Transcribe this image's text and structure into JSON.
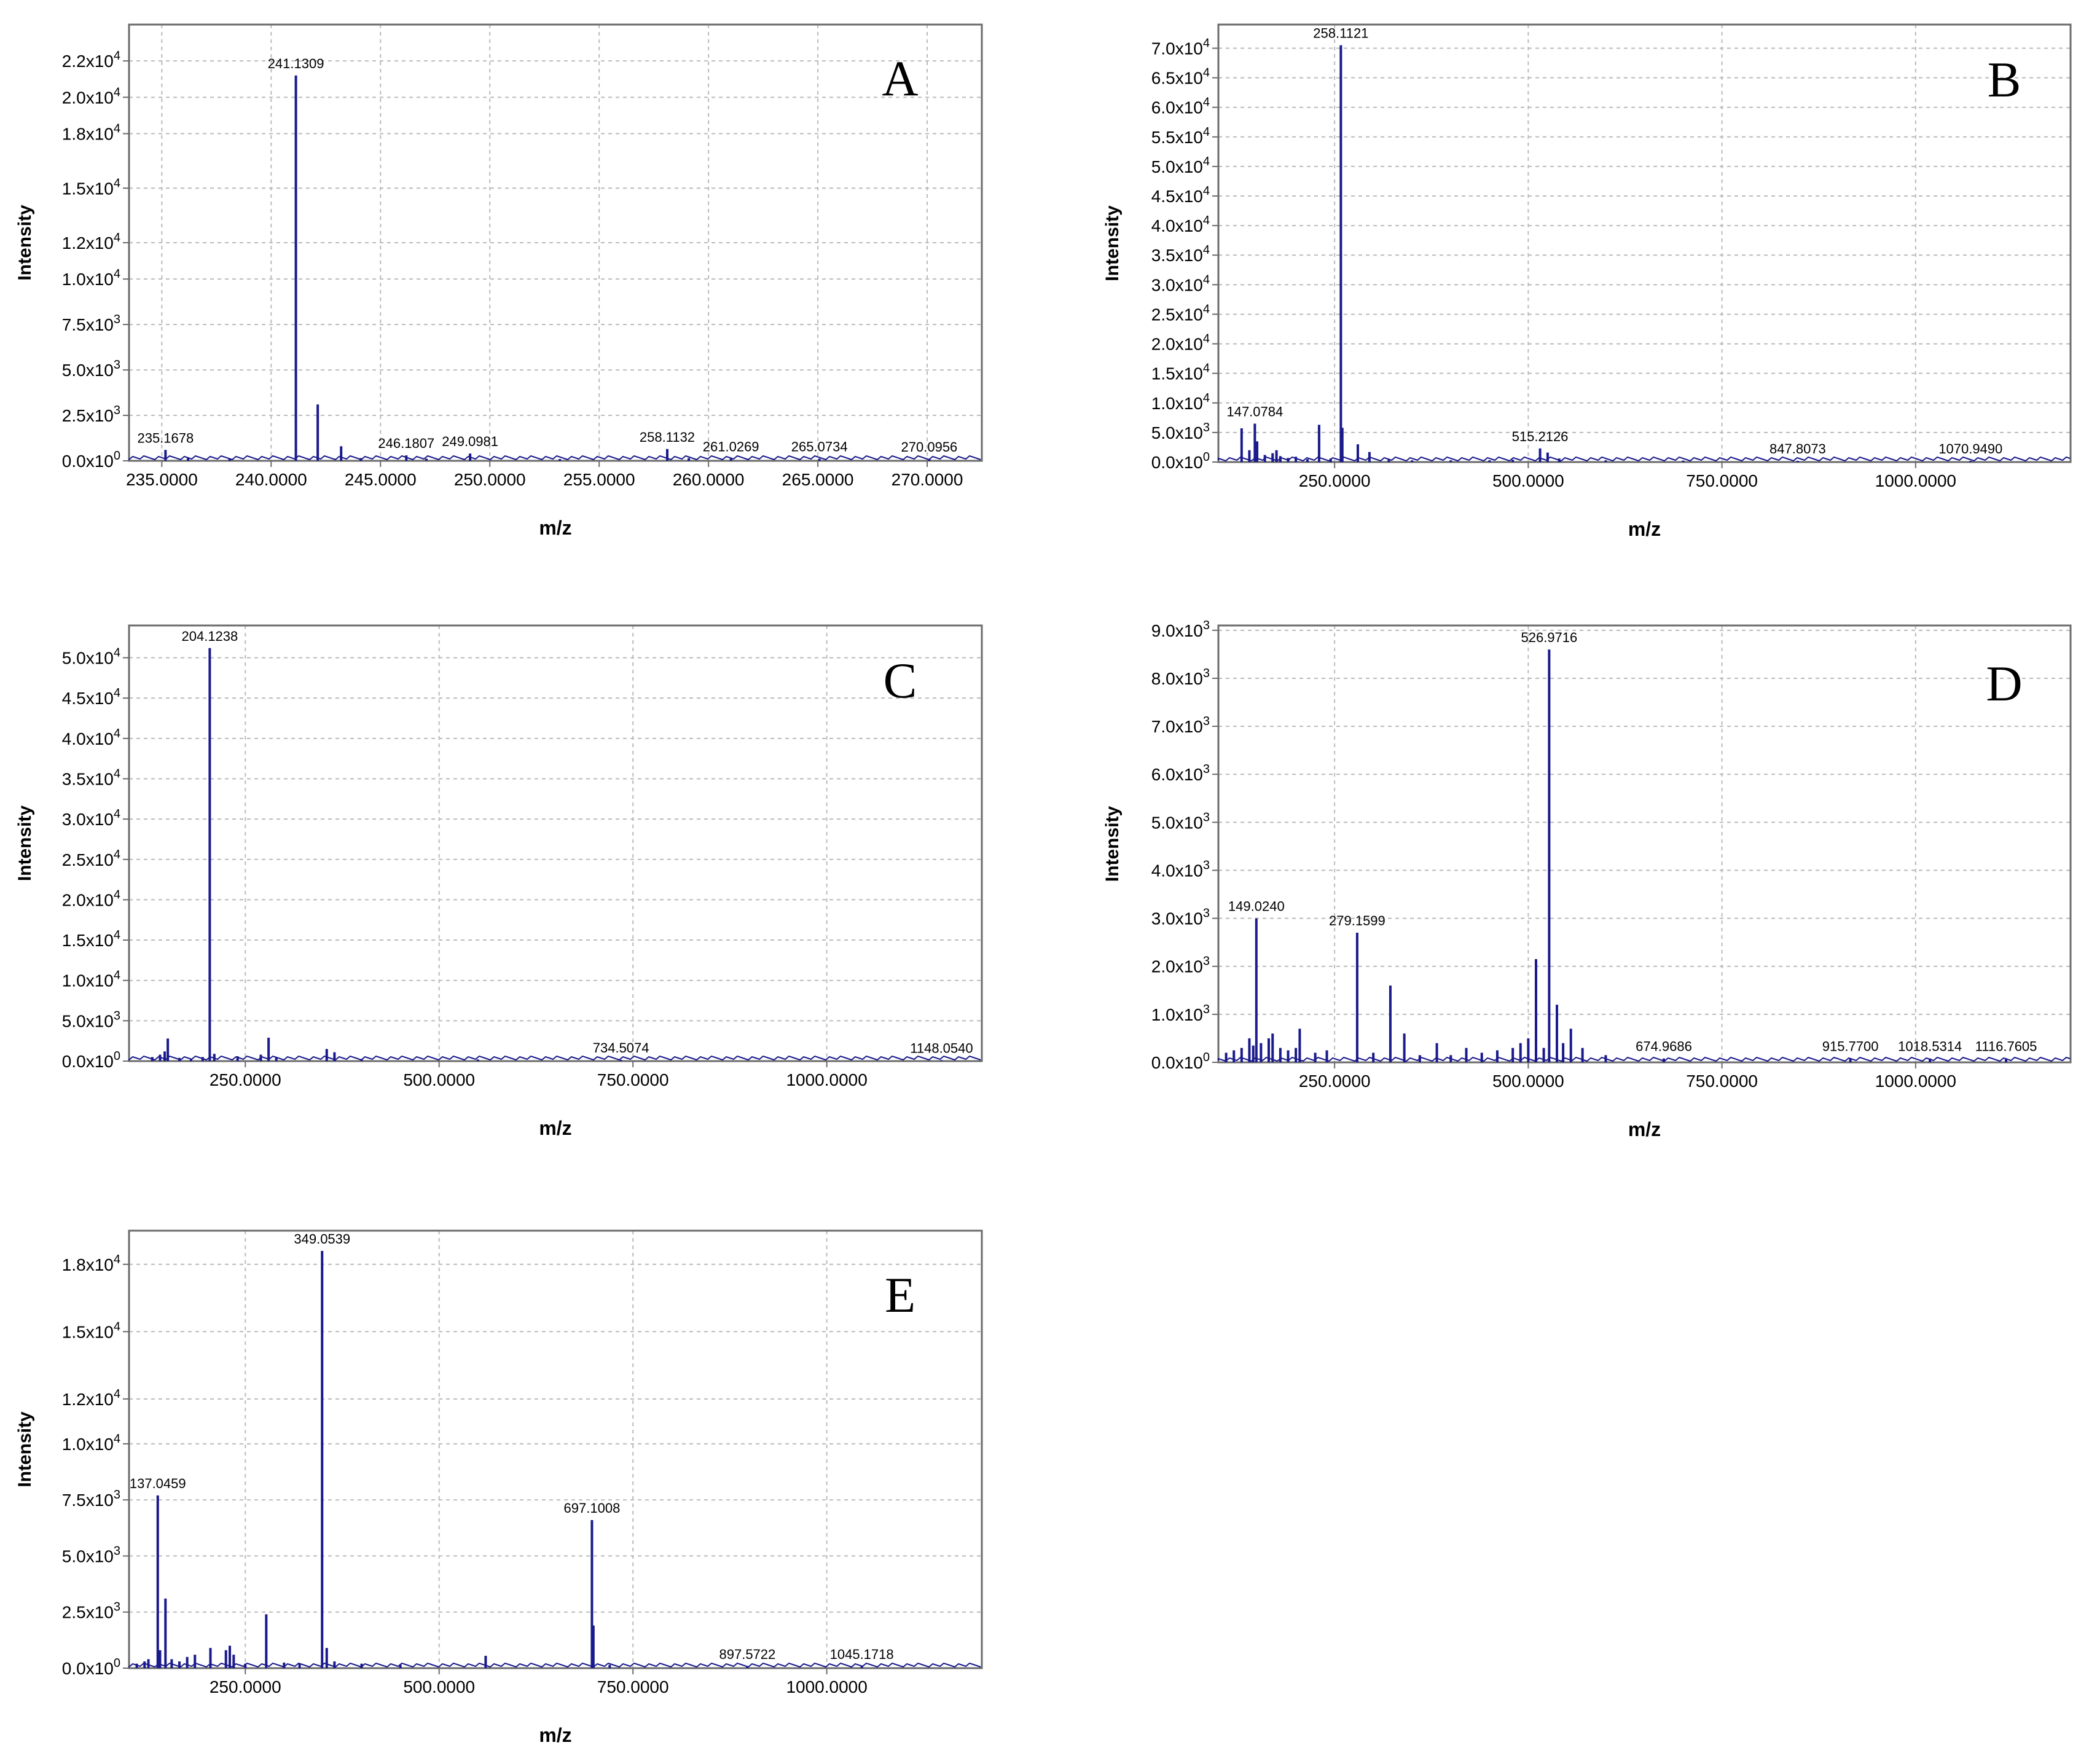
{
  "figure": {
    "background": "#ffffff"
  },
  "style": {
    "trace_color": "#1a1a8c",
    "grid_color": "#bbbbbb",
    "frame_color": "#6b6b6b",
    "text_color": "#000000"
  },
  "chart_data": [
    {
      "panel": "A",
      "type": "bar",
      "xlabel": "m/z",
      "ylabel": "Intensity",
      "xlim": [
        233.5,
        272.5
      ],
      "ylim": [
        0,
        24000
      ],
      "xticks": [
        235,
        240,
        245,
        250,
        255,
        260,
        265,
        270
      ],
      "xtick_labels": [
        "235.0000",
        "240.0000",
        "245.0000",
        "250.0000",
        "255.0000",
        "260.0000",
        "265.0000",
        "270.0000"
      ],
      "yticks": [
        {
          "value": 0,
          "mantissa": "0.0",
          "exp": "0"
        },
        {
          "value": 2500,
          "mantissa": "2.5",
          "exp": "3"
        },
        {
          "value": 5000,
          "mantissa": "5.0",
          "exp": "3"
        },
        {
          "value": 7500,
          "mantissa": "7.5",
          "exp": "3"
        },
        {
          "value": 10000,
          "mantissa": "1.0",
          "exp": "4"
        },
        {
          "value": 12000,
          "mantissa": "1.2",
          "exp": "4"
        },
        {
          "value": 15000,
          "mantissa": "1.5",
          "exp": "4"
        },
        {
          "value": 18000,
          "mantissa": "1.8",
          "exp": "4"
        },
        {
          "value": 20000,
          "mantissa": "2.0",
          "exp": "4"
        },
        {
          "value": 22000,
          "mantissa": "2.2",
          "exp": "4"
        }
      ],
      "peaks": [
        {
          "x": 235.1678,
          "y": 600
        },
        {
          "x": 236.2,
          "y": 150
        },
        {
          "x": 238.1,
          "y": 100
        },
        {
          "x": 241.1309,
          "y": 21200
        },
        {
          "x": 242.13,
          "y": 3100
        },
        {
          "x": 243.2,
          "y": 800
        },
        {
          "x": 244.1,
          "y": 150
        },
        {
          "x": 246.1807,
          "y": 300
        },
        {
          "x": 247.1,
          "y": 120
        },
        {
          "x": 249.0981,
          "y": 400
        },
        {
          "x": 253.2,
          "y": 100
        },
        {
          "x": 258.1132,
          "y": 650
        },
        {
          "x": 259.1,
          "y": 150
        },
        {
          "x": 261.0269,
          "y": 120
        },
        {
          "x": 265.0734,
          "y": 120
        },
        {
          "x": 270.0956,
          "y": 100
        }
      ],
      "labels": [
        {
          "text": "235.1678",
          "x": 235.1678,
          "y": 600
        },
        {
          "text": "241.1309",
          "x": 241.1309,
          "y": 21200
        },
        {
          "text": "246.1807",
          "x": 246.1807,
          "y": 300
        },
        {
          "text": "249.0981",
          "x": 249.0981,
          "y": 400
        },
        {
          "text": "258.1132",
          "x": 258.1132,
          "y": 650
        },
        {
          "text": "261.0269",
          "x": 261.0269,
          "y": 120
        },
        {
          "text": "265.0734",
          "x": 265.0734,
          "y": 120
        },
        {
          "text": "270.0956",
          "x": 270.0956,
          "y": 100
        }
      ]
    },
    {
      "panel": "B",
      "type": "bar",
      "xlabel": "m/z",
      "ylabel": "Intensity",
      "xlim": [
        100,
        1200
      ],
      "ylim": [
        0,
        74000
      ],
      "xticks": [
        250,
        500,
        750,
        1000
      ],
      "xtick_labels": [
        "250.0000",
        "500.0000",
        "750.0000",
        "1000.0000"
      ],
      "yticks": [
        {
          "value": 0,
          "mantissa": "0.0",
          "exp": "0"
        },
        {
          "value": 5000,
          "mantissa": "5.0",
          "exp": "3"
        },
        {
          "value": 10000,
          "mantissa": "1.0",
          "exp": "4"
        },
        {
          "value": 15000,
          "mantissa": "1.5",
          "exp": "4"
        },
        {
          "value": 20000,
          "mantissa": "2.0",
          "exp": "4"
        },
        {
          "value": 25000,
          "mantissa": "2.5",
          "exp": "4"
        },
        {
          "value": 30000,
          "mantissa": "3.0",
          "exp": "4"
        },
        {
          "value": 35000,
          "mantissa": "3.5",
          "exp": "4"
        },
        {
          "value": 40000,
          "mantissa": "4.0",
          "exp": "4"
        },
        {
          "value": 45000,
          "mantissa": "4.5",
          "exp": "4"
        },
        {
          "value": 50000,
          "mantissa": "5.0",
          "exp": "4"
        },
        {
          "value": 55000,
          "mantissa": "5.5",
          "exp": "4"
        },
        {
          "value": 60000,
          "mantissa": "6.0",
          "exp": "4"
        },
        {
          "value": 65000,
          "mantissa": "6.5",
          "exp": "4"
        },
        {
          "value": 70000,
          "mantissa": "7.0",
          "exp": "4"
        }
      ],
      "peaks": [
        {
          "x": 130,
          "y": 5700
        },
        {
          "x": 140,
          "y": 2000
        },
        {
          "x": 147.0784,
          "y": 6500
        },
        {
          "x": 150,
          "y": 3500
        },
        {
          "x": 160,
          "y": 1200
        },
        {
          "x": 170,
          "y": 1500
        },
        {
          "x": 175,
          "y": 2000
        },
        {
          "x": 180,
          "y": 1000
        },
        {
          "x": 190,
          "y": 700
        },
        {
          "x": 200,
          "y": 900
        },
        {
          "x": 215,
          "y": 500
        },
        {
          "x": 230,
          "y": 6300
        },
        {
          "x": 245,
          "y": 600
        },
        {
          "x": 258.1121,
          "y": 70500
        },
        {
          "x": 260,
          "y": 5800
        },
        {
          "x": 280,
          "y": 3000
        },
        {
          "x": 295,
          "y": 1700
        },
        {
          "x": 320,
          "y": 400
        },
        {
          "x": 350,
          "y": 300
        },
        {
          "x": 400,
          "y": 300
        },
        {
          "x": 450,
          "y": 300
        },
        {
          "x": 480,
          "y": 400
        },
        {
          "x": 515.2126,
          "y": 2300
        },
        {
          "x": 525,
          "y": 1600
        },
        {
          "x": 540,
          "y": 600
        },
        {
          "x": 600,
          "y": 300
        },
        {
          "x": 700,
          "y": 250
        },
        {
          "x": 847.8073,
          "y": 200
        },
        {
          "x": 1070.949,
          "y": 200
        }
      ],
      "labels": [
        {
          "text": "258.1121",
          "x": 258.1121,
          "y": 70500
        },
        {
          "text": "147.0784",
          "x": 147.0784,
          "y": 6500
        },
        {
          "text": "515.2126",
          "x": 515.2126,
          "y": 2300
        },
        {
          "text": "847.8073",
          "x": 847.8073,
          "y": 200
        },
        {
          "text": "1070.9490",
          "x": 1070.949,
          "y": 200
        }
      ]
    },
    {
      "panel": "C",
      "type": "bar",
      "xlabel": "m/z",
      "ylabel": "Intensity",
      "xlim": [
        100,
        1200
      ],
      "ylim": [
        0,
        54000
      ],
      "xticks": [
        250,
        500,
        750,
        1000
      ],
      "xtick_labels": [
        "250.0000",
        "500.0000",
        "750.0000",
        "1000.0000"
      ],
      "yticks": [
        {
          "value": 0,
          "mantissa": "0.0",
          "exp": "0"
        },
        {
          "value": 5000,
          "mantissa": "5.0",
          "exp": "3"
        },
        {
          "value": 10000,
          "mantissa": "1.0",
          "exp": "4"
        },
        {
          "value": 15000,
          "mantissa": "1.5",
          "exp": "4"
        },
        {
          "value": 20000,
          "mantissa": "2.0",
          "exp": "4"
        },
        {
          "value": 25000,
          "mantissa": "2.5",
          "exp": "4"
        },
        {
          "value": 30000,
          "mantissa": "3.0",
          "exp": "4"
        },
        {
          "value": 35000,
          "mantissa": "3.5",
          "exp": "4"
        },
        {
          "value": 40000,
          "mantissa": "4.0",
          "exp": "4"
        },
        {
          "value": 45000,
          "mantissa": "4.5",
          "exp": "4"
        },
        {
          "value": 50000,
          "mantissa": "5.0",
          "exp": "4"
        }
      ],
      "peaks": [
        {
          "x": 130,
          "y": 500
        },
        {
          "x": 140,
          "y": 800
        },
        {
          "x": 146,
          "y": 1200
        },
        {
          "x": 150,
          "y": 2800
        },
        {
          "x": 165,
          "y": 400
        },
        {
          "x": 180,
          "y": 300
        },
        {
          "x": 195,
          "y": 500
        },
        {
          "x": 204.1238,
          "y": 51200
        },
        {
          "x": 210,
          "y": 900
        },
        {
          "x": 240,
          "y": 600
        },
        {
          "x": 270,
          "y": 800
        },
        {
          "x": 280,
          "y": 2900
        },
        {
          "x": 290,
          "y": 500
        },
        {
          "x": 355,
          "y": 1500
        },
        {
          "x": 365,
          "y": 1100
        },
        {
          "x": 400,
          "y": 200
        },
        {
          "x": 550,
          "y": 200
        },
        {
          "x": 734.5074,
          "y": 150
        },
        {
          "x": 1148.054,
          "y": 120
        }
      ],
      "labels": [
        {
          "text": "204.1238",
          "x": 204.1238,
          "y": 51200
        },
        {
          "text": "734.5074",
          "x": 734.5074,
          "y": 150
        },
        {
          "text": "1148.0540",
          "x": 1148.054,
          "y": 120
        }
      ]
    },
    {
      "panel": "D",
      "type": "bar",
      "xlabel": "m/z",
      "ylabel": "Intensity",
      "xlim": [
        100,
        1200
      ],
      "ylim": [
        0,
        9100
      ],
      "xticks": [
        250,
        500,
        750,
        1000
      ],
      "xtick_labels": [
        "250.0000",
        "500.0000",
        "750.0000",
        "1000.0000"
      ],
      "yticks": [
        {
          "value": 0,
          "mantissa": "0.0",
          "exp": "0"
        },
        {
          "value": 1000,
          "mantissa": "1.0",
          "exp": "3"
        },
        {
          "value": 2000,
          "mantissa": "2.0",
          "exp": "3"
        },
        {
          "value": 3000,
          "mantissa": "3.0",
          "exp": "3"
        },
        {
          "value": 4000,
          "mantissa": "4.0",
          "exp": "3"
        },
        {
          "value": 5000,
          "mantissa": "5.0",
          "exp": "3"
        },
        {
          "value": 6000,
          "mantissa": "6.0",
          "exp": "3"
        },
        {
          "value": 7000,
          "mantissa": "7.0",
          "exp": "3"
        },
        {
          "value": 8000,
          "mantissa": "8.0",
          "exp": "3"
        },
        {
          "value": 9000,
          "mantissa": "9.0",
          "exp": "3"
        }
      ],
      "peaks": [
        {
          "x": 110,
          "y": 200
        },
        {
          "x": 120,
          "y": 250
        },
        {
          "x": 130,
          "y": 300
        },
        {
          "x": 140,
          "y": 500
        },
        {
          "x": 145,
          "y": 350
        },
        {
          "x": 149.024,
          "y": 3000
        },
        {
          "x": 155,
          "y": 400
        },
        {
          "x": 165,
          "y": 500
        },
        {
          "x": 170,
          "y": 600
        },
        {
          "x": 180,
          "y": 300
        },
        {
          "x": 190,
          "y": 250
        },
        {
          "x": 200,
          "y": 300
        },
        {
          "x": 205,
          "y": 700
        },
        {
          "x": 225,
          "y": 200
        },
        {
          "x": 240,
          "y": 250
        },
        {
          "x": 279.1599,
          "y": 2700
        },
        {
          "x": 300,
          "y": 200
        },
        {
          "x": 322,
          "y": 1600
        },
        {
          "x": 340,
          "y": 600
        },
        {
          "x": 360,
          "y": 150
        },
        {
          "x": 382,
          "y": 400
        },
        {
          "x": 400,
          "y": 150
        },
        {
          "x": 420,
          "y": 300
        },
        {
          "x": 440,
          "y": 200
        },
        {
          "x": 460,
          "y": 250
        },
        {
          "x": 480,
          "y": 300
        },
        {
          "x": 490,
          "y": 400
        },
        {
          "x": 500,
          "y": 500
        },
        {
          "x": 510,
          "y": 2150
        },
        {
          "x": 520,
          "y": 300
        },
        {
          "x": 526.9716,
          "y": 8600
        },
        {
          "x": 537,
          "y": 1200
        },
        {
          "x": 545,
          "y": 400
        },
        {
          "x": 555,
          "y": 700
        },
        {
          "x": 570,
          "y": 300
        },
        {
          "x": 600,
          "y": 150
        },
        {
          "x": 674.9686,
          "y": 80
        },
        {
          "x": 915.77,
          "y": 80
        },
        {
          "x": 1018.5314,
          "y": 80
        },
        {
          "x": 1116.7605,
          "y": 80
        }
      ],
      "labels": [
        {
          "text": "526.9716",
          "x": 526.9716,
          "y": 8600
        },
        {
          "text": "149.0240",
          "x": 149.024,
          "y": 3000
        },
        {
          "text": "279.1599",
          "x": 279.1599,
          "y": 2700
        },
        {
          "text": "674.9686",
          "x": 674.9686,
          "y": 80
        },
        {
          "text": "915.7700",
          "x": 915.77,
          "y": 80
        },
        {
          "text": "1018.5314",
          "x": 1018.5314,
          "y": 80
        },
        {
          "text": "1116.7605",
          "x": 1116.7605,
          "y": 80
        }
      ]
    },
    {
      "panel": "E",
      "type": "bar",
      "xlabel": "m/z",
      "ylabel": "Intensity",
      "xlim": [
        100,
        1200
      ],
      "ylim": [
        0,
        19500
      ],
      "xticks": [
        250,
        500,
        750,
        1000
      ],
      "xtick_labels": [
        "250.0000",
        "500.0000",
        "750.0000",
        "1000.0000"
      ],
      "yticks": [
        {
          "value": 0,
          "mantissa": "0.0",
          "exp": "0"
        },
        {
          "value": 2500,
          "mantissa": "2.5",
          "exp": "3"
        },
        {
          "value": 5000,
          "mantissa": "5.0",
          "exp": "3"
        },
        {
          "value": 7500,
          "mantissa": "7.5",
          "exp": "3"
        },
        {
          "value": 10000,
          "mantissa": "1.0",
          "exp": "4"
        },
        {
          "value": 12000,
          "mantissa": "1.2",
          "exp": "4"
        },
        {
          "value": 15000,
          "mantissa": "1.5",
          "exp": "4"
        },
        {
          "value": 18000,
          "mantissa": "1.8",
          "exp": "4"
        }
      ],
      "peaks": [
        {
          "x": 110,
          "y": 200
        },
        {
          "x": 120,
          "y": 300
        },
        {
          "x": 125,
          "y": 400
        },
        {
          "x": 137.0459,
          "y": 7700
        },
        {
          "x": 140,
          "y": 800
        },
        {
          "x": 147,
          "y": 3100
        },
        {
          "x": 155,
          "y": 400
        },
        {
          "x": 165,
          "y": 300
        },
        {
          "x": 175,
          "y": 500
        },
        {
          "x": 185,
          "y": 600
        },
        {
          "x": 205,
          "y": 900
        },
        {
          "x": 225,
          "y": 800
        },
        {
          "x": 230,
          "y": 1000
        },
        {
          "x": 235,
          "y": 600
        },
        {
          "x": 250,
          "y": 200
        },
        {
          "x": 277,
          "y": 2400
        },
        {
          "x": 300,
          "y": 250
        },
        {
          "x": 320,
          "y": 200
        },
        {
          "x": 349.0539,
          "y": 18600
        },
        {
          "x": 355,
          "y": 900
        },
        {
          "x": 365,
          "y": 300
        },
        {
          "x": 400,
          "y": 200
        },
        {
          "x": 450,
          "y": 150
        },
        {
          "x": 560,
          "y": 550
        },
        {
          "x": 697.1008,
          "y": 6600
        },
        {
          "x": 699,
          "y": 1900
        },
        {
          "x": 720,
          "y": 150
        },
        {
          "x": 897.5722,
          "y": 80
        },
        {
          "x": 1045.1718,
          "y": 80
        }
      ],
      "labels": [
        {
          "text": "349.0539",
          "x": 349.0539,
          "y": 18600
        },
        {
          "text": "137.0459",
          "x": 137.0459,
          "y": 7700
        },
        {
          "text": "697.1008",
          "x": 697.1008,
          "y": 6600
        },
        {
          "text": "897.5722",
          "x": 897.5722,
          "y": 80
        },
        {
          "text": "1045.1718",
          "x": 1045.1718,
          "y": 80
        }
      ]
    }
  ]
}
